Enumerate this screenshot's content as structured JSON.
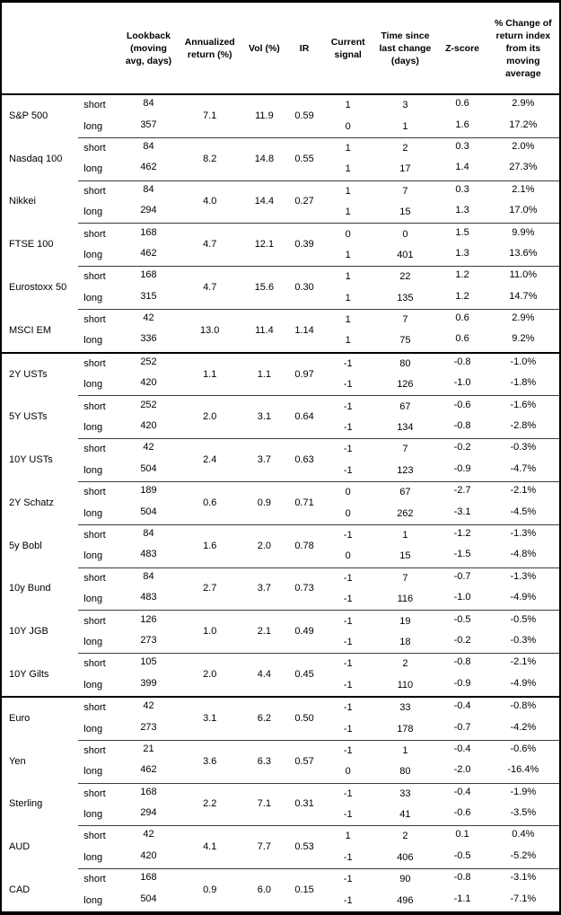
{
  "table": {
    "headers": {
      "asset": "",
      "leg": "",
      "lookback": "Lookback\n(moving\navg, days)",
      "annualized": "Annualized\nreturn (%)",
      "vol": "Vol (%)",
      "ir": "IR",
      "signal": "Current\nsignal",
      "time": "Time since\nlast change\n(days)",
      "zscore": "Z-score",
      "pct": "% Change of\nreturn index\nfrom its\nmoving\naverage"
    },
    "leg_labels": {
      "short": "short",
      "long": "long"
    },
    "groups": [
      {
        "name": "S&P 500",
        "section": "equities",
        "annualized": "7.1",
        "vol": "11.9",
        "ir": "0.59",
        "short": {
          "lookback": "84",
          "signal": "1",
          "time": "3",
          "zscore": "0.6",
          "pct": "2.9%"
        },
        "long": {
          "lookback": "357",
          "signal": "0",
          "time": "1",
          "zscore": "1.6",
          "pct": "17.2%"
        }
      },
      {
        "name": "Nasdaq 100",
        "section": "equities",
        "annualized": "8.2",
        "vol": "14.8",
        "ir": "0.55",
        "short": {
          "lookback": "84",
          "signal": "1",
          "time": "2",
          "zscore": "0.3",
          "pct": "2.0%"
        },
        "long": {
          "lookback": "462",
          "signal": "1",
          "time": "17",
          "zscore": "1.4",
          "pct": "27.3%"
        }
      },
      {
        "name": "Nikkei",
        "section": "equities",
        "annualized": "4.0",
        "vol": "14.4",
        "ir": "0.27",
        "short": {
          "lookback": "84",
          "signal": "1",
          "time": "7",
          "zscore": "0.3",
          "pct": "2.1%"
        },
        "long": {
          "lookback": "294",
          "signal": "1",
          "time": "15",
          "zscore": "1.3",
          "pct": "17.0%"
        }
      },
      {
        "name": "FTSE 100",
        "section": "equities",
        "annualized": "4.7",
        "vol": "12.1",
        "ir": "0.39",
        "short": {
          "lookback": "168",
          "signal": "0",
          "time": "0",
          "zscore": "1.5",
          "pct": "9.9%"
        },
        "long": {
          "lookback": "462",
          "signal": "1",
          "time": "401",
          "zscore": "1.3",
          "pct": "13.6%"
        }
      },
      {
        "name": "Eurostoxx 50",
        "section": "equities",
        "annualized": "4.7",
        "vol": "15.6",
        "ir": "0.30",
        "short": {
          "lookback": "168",
          "signal": "1",
          "time": "22",
          "zscore": "1.2",
          "pct": "11.0%"
        },
        "long": {
          "lookback": "315",
          "signal": "1",
          "time": "135",
          "zscore": "1.2",
          "pct": "14.7%"
        }
      },
      {
        "name": "MSCI EM",
        "section": "equities",
        "annualized": "13.0",
        "vol": "11.4",
        "ir": "1.14",
        "short": {
          "lookback": "42",
          "signal": "1",
          "time": "7",
          "zscore": "0.6",
          "pct": "2.9%"
        },
        "long": {
          "lookback": "336",
          "signal": "1",
          "time": "75",
          "zscore": "0.6",
          "pct": "9.2%"
        }
      },
      {
        "name": "2Y USTs",
        "section": "bonds",
        "annualized": "1.1",
        "vol": "1.1",
        "ir": "0.97",
        "short": {
          "lookback": "252",
          "signal": "-1",
          "time": "80",
          "zscore": "-0.8",
          "pct": "-1.0%"
        },
        "long": {
          "lookback": "420",
          "signal": "-1",
          "time": "126",
          "zscore": "-1.0",
          "pct": "-1.8%"
        }
      },
      {
        "name": "5Y USTs",
        "section": "bonds",
        "annualized": "2.0",
        "vol": "3.1",
        "ir": "0.64",
        "short": {
          "lookback": "252",
          "signal": "-1",
          "time": "67",
          "zscore": "-0.6",
          "pct": "-1.6%"
        },
        "long": {
          "lookback": "420",
          "signal": "-1",
          "time": "134",
          "zscore": "-0.8",
          "pct": "-2.8%"
        }
      },
      {
        "name": "10Y USTs",
        "section": "bonds",
        "annualized": "2.4",
        "vol": "3.7",
        "ir": "0.63",
        "short": {
          "lookback": "42",
          "signal": "-1",
          "time": "7",
          "zscore": "-0.2",
          "pct": "-0.3%"
        },
        "long": {
          "lookback": "504",
          "signal": "-1",
          "time": "123",
          "zscore": "-0.9",
          "pct": "-4.7%"
        }
      },
      {
        "name": "2Y Schatz",
        "section": "bonds",
        "annualized": "0.6",
        "vol": "0.9",
        "ir": "0.71",
        "short": {
          "lookback": "189",
          "signal": "0",
          "time": "67",
          "zscore": "-2.7",
          "pct": "-2.1%"
        },
        "long": {
          "lookback": "504",
          "signal": "0",
          "time": "262",
          "zscore": "-3.1",
          "pct": "-4.5%"
        }
      },
      {
        "name": "5y Bobl",
        "section": "bonds",
        "annualized": "1.6",
        "vol": "2.0",
        "ir": "0.78",
        "short": {
          "lookback": "84",
          "signal": "-1",
          "time": "1",
          "zscore": "-1.2",
          "pct": "-1.3%"
        },
        "long": {
          "lookback": "483",
          "signal": "0",
          "time": "15",
          "zscore": "-1.5",
          "pct": "-4.8%"
        }
      },
      {
        "name": "10y Bund",
        "section": "bonds",
        "annualized": "2.7",
        "vol": "3.7",
        "ir": "0.73",
        "short": {
          "lookback": "84",
          "signal": "-1",
          "time": "7",
          "zscore": "-0.7",
          "pct": "-1.3%"
        },
        "long": {
          "lookback": "483",
          "signal": "-1",
          "time": "116",
          "zscore": "-1.0",
          "pct": "-4.9%"
        }
      },
      {
        "name": "10Y JGB",
        "section": "bonds",
        "annualized": "1.0",
        "vol": "2.1",
        "ir": "0.49",
        "short": {
          "lookback": "126",
          "signal": "-1",
          "time": "19",
          "zscore": "-0.5",
          "pct": "-0.5%"
        },
        "long": {
          "lookback": "273",
          "signal": "-1",
          "time": "18",
          "zscore": "-0.2",
          "pct": "-0.3%"
        }
      },
      {
        "name": "10Y Gilts",
        "section": "bonds",
        "annualized": "2.0",
        "vol": "4.4",
        "ir": "0.45",
        "short": {
          "lookback": "105",
          "signal": "-1",
          "time": "2",
          "zscore": "-0.8",
          "pct": "-2.1%"
        },
        "long": {
          "lookback": "399",
          "signal": "-1",
          "time": "110",
          "zscore": "-0.9",
          "pct": "-4.9%"
        }
      },
      {
        "name": "Euro",
        "section": "fx",
        "annualized": "3.1",
        "vol": "6.2",
        "ir": "0.50",
        "short": {
          "lookback": "42",
          "signal": "-1",
          "time": "33",
          "zscore": "-0.4",
          "pct": "-0.8%"
        },
        "long": {
          "lookback": "273",
          "signal": "-1",
          "time": "178",
          "zscore": "-0.7",
          "pct": "-4.2%"
        }
      },
      {
        "name": "Yen",
        "section": "fx",
        "annualized": "3.6",
        "vol": "6.3",
        "ir": "0.57",
        "short": {
          "lookback": "21",
          "signal": "-1",
          "time": "1",
          "zscore": "-0.4",
          "pct": "-0.6%"
        },
        "long": {
          "lookback": "462",
          "signal": "0",
          "time": "80",
          "zscore": "-2.0",
          "pct": "-16.4%"
        }
      },
      {
        "name": "Sterling",
        "section": "fx",
        "annualized": "2.2",
        "vol": "7.1",
        "ir": "0.31",
        "short": {
          "lookback": "168",
          "signal": "-1",
          "time": "33",
          "zscore": "-0.4",
          "pct": "-1.9%"
        },
        "long": {
          "lookback": "294",
          "signal": "-1",
          "time": "41",
          "zscore": "-0.6",
          "pct": "-3.5%"
        }
      },
      {
        "name": "AUD",
        "section": "fx",
        "annualized": "4.1",
        "vol": "7.7",
        "ir": "0.53",
        "short": {
          "lookback": "42",
          "signal": "1",
          "time": "2",
          "zscore": "0.1",
          "pct": "0.4%"
        },
        "long": {
          "lookback": "420",
          "signal": "-1",
          "time": "406",
          "zscore": "-0.5",
          "pct": "-5.2%"
        }
      },
      {
        "name": "CAD",
        "section": "fx",
        "annualized": "0.9",
        "vol": "6.0",
        "ir": "0.15",
        "short": {
          "lookback": "168",
          "signal": "-1",
          "time": "90",
          "zscore": "-0.8",
          "pct": "-3.1%"
        },
        "long": {
          "lookback": "504",
          "signal": "-1",
          "time": "496",
          "zscore": "-1.1",
          "pct": "-7.1%"
        }
      }
    ]
  }
}
